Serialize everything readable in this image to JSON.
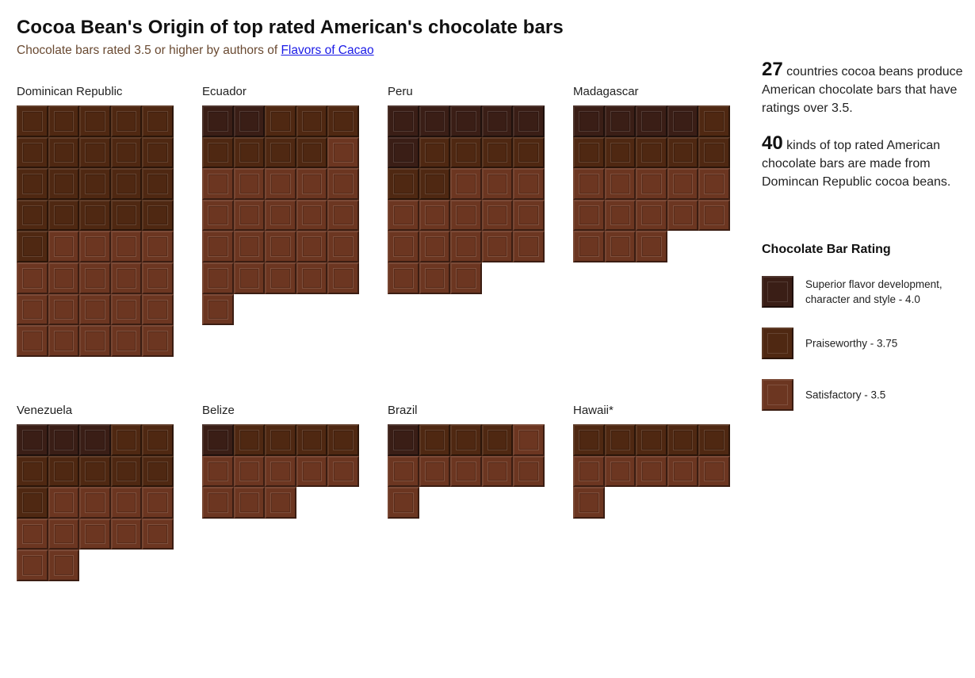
{
  "header": {
    "title": "Cocoa Bean's Origin of top rated American's chocolate bars",
    "subtitle_prefix": "Chocolate bars rated 3.5 or higher by authors of",
    "subtitle_link": "Flavors of Cacao"
  },
  "stats": [
    {
      "number": "27",
      "text": "countries cocoa beans produce American chocolate bars that have ratings over 3.5."
    },
    {
      "number": "40",
      "text": "kinds of top rated American chocolate bars are made from Domincan Republic cocoa beans."
    }
  ],
  "colors": {
    "4.0": "#3a1e16",
    "3.75": "#4f2812",
    "3.5": "#6c3621",
    "bar_border": "#2e1a12"
  },
  "chart_data": {
    "type": "waffle",
    "title": "Cocoa Bean's Origin of top rated American's chocolate bars",
    "subtitle": "Chocolate bars rated 3.5 or higher by authors of Flavors of Cacao",
    "columns_per_bar": 5,
    "legend": {
      "title": "Chocolate Bar Rating",
      "items": [
        {
          "rating": "4.0",
          "label": "Superior flavor development, character and style - 4.0"
        },
        {
          "rating": "3.75",
          "label": "Praiseworthy - 3.75"
        },
        {
          "rating": "3.5",
          "label": "Satisfactory - 3.5"
        }
      ]
    },
    "origins": [
      {
        "name": "Dominican Republic",
        "counts": {
          "4.0": 0,
          "3.75": 21,
          "3.5": 19
        }
      },
      {
        "name": "Ecuador",
        "counts": {
          "4.0": 2,
          "3.75": 7,
          "3.5": 22
        }
      },
      {
        "name": "Peru",
        "counts": {
          "4.0": 6,
          "3.75": 6,
          "3.5": 16
        }
      },
      {
        "name": "Madagascar",
        "counts": {
          "4.0": 4,
          "3.75": 6,
          "3.5": 13
        }
      },
      {
        "name": "Venezuela",
        "counts": {
          "4.0": 3,
          "3.75": 8,
          "3.5": 11
        }
      },
      {
        "name": "Belize",
        "counts": {
          "4.0": 1,
          "3.75": 4,
          "3.5": 8
        }
      },
      {
        "name": "Brazil",
        "counts": {
          "4.0": 1,
          "3.75": 3,
          "3.5": 7
        }
      },
      {
        "name": "Hawaii*",
        "counts": {
          "4.0": 0,
          "3.75": 5,
          "3.5": 6
        }
      }
    ]
  }
}
